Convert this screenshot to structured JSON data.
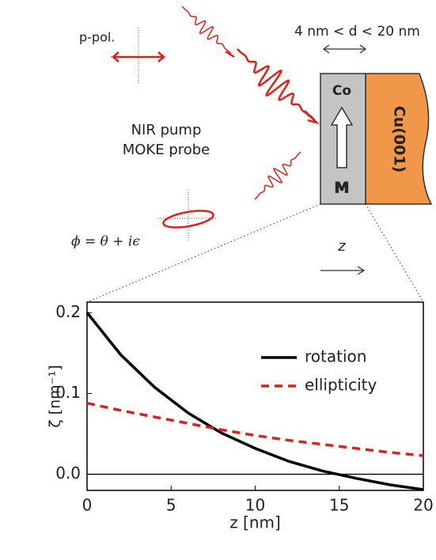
{
  "diagram": {
    "polarization": "p-pol.",
    "thickness": "4 nm < d < 20 nm",
    "layer_top": "Co",
    "substrate": "Cu(001)",
    "magnetization": "M",
    "pump": "NIR pump",
    "probe": "MOKE probe",
    "formula": "ϕ = θ + iϵ",
    "depth_axis": "z"
  },
  "chart_data": {
    "type": "line",
    "xlabel": "z [nm]",
    "ylabel": "ζ  [nm⁻¹]",
    "x": [
      0,
      2,
      4,
      6,
      8,
      10,
      12,
      14,
      16,
      18,
      20
    ],
    "series": [
      {
        "name": "rotation",
        "color": "#000000",
        "linestyle": "solid",
        "values": [
          0.2,
          0.148,
          0.108,
          0.076,
          0.051,
          0.032,
          0.016,
          0.004,
          -0.005,
          -0.013,
          -0.019
        ]
      },
      {
        "name": "ellipticity",
        "color": "#e0201b",
        "linestyle": "dashed",
        "values": [
          0.088,
          0.079,
          0.071,
          0.063,
          0.055,
          0.048,
          0.042,
          0.037,
          0.032,
          0.027,
          0.023
        ]
      }
    ],
    "xlim": [
      0,
      20
    ],
    "ylim": [
      -0.02,
      0.213
    ],
    "xticks": [
      0,
      5,
      10,
      15,
      20
    ],
    "yticks": [
      {
        "value": 0,
        "label": "0.0"
      },
      {
        "value": 0.1,
        "label": "0.1"
      },
      {
        "value": 0.2,
        "label": "0.2"
      }
    ],
    "legend": "upper right"
  }
}
